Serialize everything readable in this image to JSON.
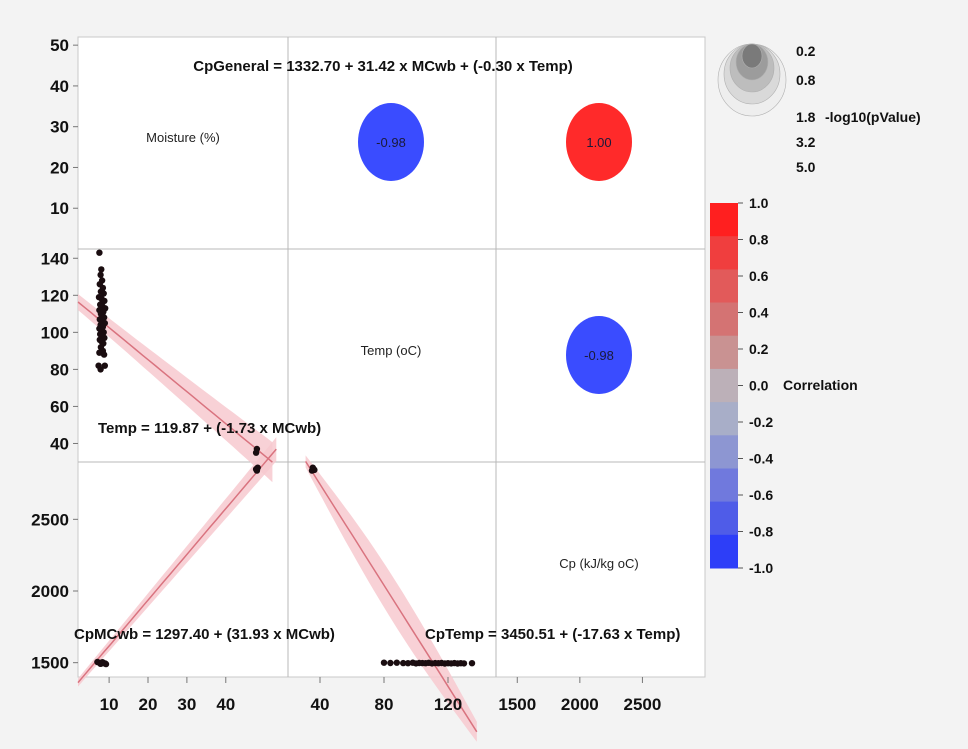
{
  "chart_data": {
    "type": "scatter",
    "chart_kind": "scatterplot-matrix",
    "variables": [
      "Moisture (%)",
      "Temp (oC)",
      "Cp (kJ/kg oC)"
    ],
    "equations": {
      "top": "CpGeneral = 1332.70 + 31.42 x MCwb + (-0.30 x Temp)",
      "temp_mcwb": "Temp = 119.87 + (-1.73 x MCwb)",
      "cp_mcwb": "CpMCwb = 1297.40 + (31.93 x MCwb)",
      "cp_temp": "CpTemp = 3450.51 + (-17.63 x Temp)"
    },
    "correlations": [
      {
        "pair": [
          "Moisture (%)",
          "Temp (oC)"
        ],
        "label": "-0.98",
        "value": -0.98,
        "color": "#3a4cff"
      },
      {
        "pair": [
          "Moisture (%)",
          "Cp (kJ/kg oC)"
        ],
        "label": "1.00",
        "value": 1.0,
        "color": "#ff2a2a"
      },
      {
        "pair": [
          "Temp (oC)",
          "Cp (kJ/kg oC)"
        ],
        "label": "-0.98",
        "value": -0.98,
        "color": "#3a4cff"
      }
    ],
    "axes": {
      "moisture": {
        "ticks": [
          "10",
          "20",
          "30",
          "40",
          "50"
        ],
        "range": [
          0,
          52
        ]
      },
      "temp": {
        "ticks": [
          "40",
          "60",
          "80",
          "100",
          "120",
          "140"
        ],
        "range": [
          30,
          145
        ]
      },
      "cp": {
        "ticks": [
          "1500",
          "2000",
          "2500"
        ],
        "range": [
          1400,
          2900
        ]
      },
      "x_moisture_ticks": [
        "10",
        "20",
        "30",
        "40"
      ],
      "x_temp_ticks": [
        "40",
        "80",
        "120"
      ],
      "x_cp_ticks": [
        "1500",
        "2000",
        "2500"
      ]
    },
    "series": {
      "temp_vs_moisture": [
        {
          "x": 7.5,
          "y": 143
        },
        {
          "x": 8.0,
          "y": 134
        },
        {
          "x": 7.8,
          "y": 131
        },
        {
          "x": 8.2,
          "y": 128
        },
        {
          "x": 7.6,
          "y": 126
        },
        {
          "x": 8.4,
          "y": 124
        },
        {
          "x": 7.9,
          "y": 122
        },
        {
          "x": 8.6,
          "y": 121
        },
        {
          "x": 7.4,
          "y": 119
        },
        {
          "x": 8.1,
          "y": 118
        },
        {
          "x": 8.8,
          "y": 117
        },
        {
          "x": 7.7,
          "y": 115
        },
        {
          "x": 8.3,
          "y": 114
        },
        {
          "x": 9.0,
          "y": 113
        },
        {
          "x": 7.5,
          "y": 112
        },
        {
          "x": 8.5,
          "y": 111
        },
        {
          "x": 7.9,
          "y": 110
        },
        {
          "x": 8.7,
          "y": 108
        },
        {
          "x": 7.6,
          "y": 107
        },
        {
          "x": 8.2,
          "y": 106
        },
        {
          "x": 8.9,
          "y": 105
        },
        {
          "x": 7.8,
          "y": 104
        },
        {
          "x": 8.4,
          "y": 103
        },
        {
          "x": 7.5,
          "y": 102
        },
        {
          "x": 8.0,
          "y": 101
        },
        {
          "x": 8.6,
          "y": 100
        },
        {
          "x": 7.7,
          "y": 99
        },
        {
          "x": 8.3,
          "y": 98
        },
        {
          "x": 8.8,
          "y": 97
        },
        {
          "x": 7.6,
          "y": 96
        },
        {
          "x": 8.1,
          "y": 95
        },
        {
          "x": 8.5,
          "y": 94
        },
        {
          "x": 7.9,
          "y": 92
        },
        {
          "x": 8.4,
          "y": 90
        },
        {
          "x": 7.5,
          "y": 89
        },
        {
          "x": 8.7,
          "y": 88
        },
        {
          "x": 7.3,
          "y": 82
        },
        {
          "x": 8.9,
          "y": 82
        },
        {
          "x": 7.8,
          "y": 80
        },
        {
          "x": 48,
          "y": 37
        },
        {
          "x": 47.8,
          "y": 35
        }
      ],
      "cp_vs_moisture": [
        {
          "x": 7.0,
          "y": 1505
        },
        {
          "x": 7.5,
          "y": 1500
        },
        {
          "x": 8.0,
          "y": 1498
        },
        {
          "x": 8.5,
          "y": 1496
        },
        {
          "x": 9.0,
          "y": 1494
        },
        {
          "x": 7.8,
          "y": 1492
        },
        {
          "x": 9.2,
          "y": 1490
        },
        {
          "x": 8.3,
          "y": 1503
        },
        {
          "x": 48.0,
          "y": 2840
        },
        {
          "x": 47.8,
          "y": 2850
        },
        {
          "x": 48.2,
          "y": 2860
        }
      ],
      "cp_vs_temp": [
        {
          "x": 35.0,
          "y": 2840
        },
        {
          "x": 36.0,
          "y": 2850
        },
        {
          "x": 35.5,
          "y": 2860
        },
        {
          "x": 36.5,
          "y": 2845
        },
        {
          "x": 80,
          "y": 1500
        },
        {
          "x": 84,
          "y": 1498
        },
        {
          "x": 88,
          "y": 1500
        },
        {
          "x": 92,
          "y": 1497
        },
        {
          "x": 95,
          "y": 1496
        },
        {
          "x": 98,
          "y": 1500
        },
        {
          "x": 100,
          "y": 1495
        },
        {
          "x": 102,
          "y": 1498
        },
        {
          "x": 104,
          "y": 1497
        },
        {
          "x": 106,
          "y": 1496
        },
        {
          "x": 108,
          "y": 1499
        },
        {
          "x": 110,
          "y": 1495
        },
        {
          "x": 112,
          "y": 1497
        },
        {
          "x": 114,
          "y": 1496
        },
        {
          "x": 116,
          "y": 1498
        },
        {
          "x": 118,
          "y": 1494
        },
        {
          "x": 120,
          "y": 1496
        },
        {
          "x": 122,
          "y": 1495
        },
        {
          "x": 124,
          "y": 1497
        },
        {
          "x": 126,
          "y": 1494
        },
        {
          "x": 128,
          "y": 1496
        },
        {
          "x": 130,
          "y": 1495
        },
        {
          "x": 135,
          "y": 1496
        }
      ]
    },
    "legend_pvalue": {
      "title": "-log10(pValue)",
      "values": [
        "0.2",
        "0.8",
        "1.8",
        "3.2",
        "5.0"
      ]
    },
    "legend_correlation": {
      "title": "Correlation",
      "values": [
        "1.0",
        "0.8",
        "0.6",
        "0.4",
        "0.2",
        "0.0",
        "-0.2",
        "-0.4",
        "-0.6",
        "-0.8",
        "-1.0"
      ],
      "colors": [
        "#ff1f1f",
        "#f03e3e",
        "#e25a5a",
        "#d47373",
        "#c99292",
        "#bcb0b8",
        "#a8aec8",
        "#8d96d2",
        "#7079dd",
        "#4f5ce8",
        "#2d3ef8"
      ]
    }
  }
}
